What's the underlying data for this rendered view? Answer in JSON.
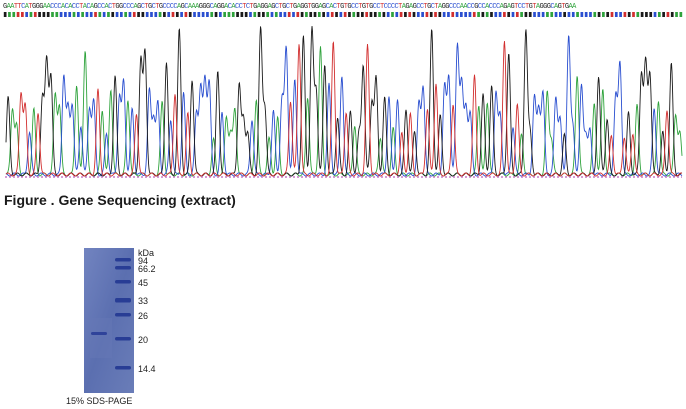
{
  "sequence": "GAATTCATGGGAACCCACACCTACAGCCACTGGCCCAGCTGCTGCCCCAGCAAAGGGCAGGACACCTCTGAGGAGCTGCTGAGGTGGAGCACTGTGCCTGTGCCTCCCCTAGAGCCTGCTAGGCCCAACCGCCACCCAGAGTCCTGTAGGGCAGTGAA",
  "base_colors": {
    "A": "#2fa33c",
    "C": "#2a4fd0",
    "G": "#1a1a1a",
    "T": "#d22f2f"
  },
  "figure_caption": "Figure . Gene Sequencing (extract)",
  "gel": {
    "unit_label": "kDa",
    "markers": [
      "94",
      "66.2",
      "45",
      "33",
      "26",
      "20",
      "14.4"
    ],
    "caption": "15% SDS-PAGE",
    "colors": {
      "background": "#5f73b3",
      "band": "#283d95"
    }
  }
}
